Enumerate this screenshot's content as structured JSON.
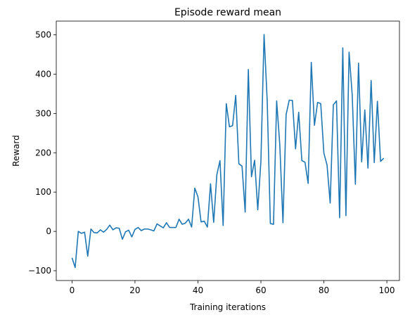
{
  "chart_data": {
    "type": "line",
    "title": "Episode reward mean",
    "xlabel": "Training iterations",
    "ylabel": "Reward",
    "xlim": [
      -5,
      104
    ],
    "ylim": [
      -125,
      535
    ],
    "xticks": [
      0,
      20,
      40,
      60,
      80,
      100
    ],
    "yticks": [
      -100,
      0,
      100,
      200,
      300,
      400,
      500
    ],
    "grid": false,
    "legend": "none",
    "line_color": "#1f77b4",
    "series": [
      {
        "x": [
          0,
          1,
          2,
          3,
          4,
          5,
          6,
          7,
          8,
          9,
          10,
          11,
          12,
          13,
          14,
          15,
          16,
          17,
          18,
          19,
          20,
          21,
          22,
          23,
          24,
          25,
          26,
          27,
          28,
          29,
          30,
          31,
          32,
          33,
          34,
          35,
          36,
          37,
          38,
          39,
          40,
          41,
          42,
          43,
          44,
          45,
          46,
          47,
          48,
          49,
          50,
          51,
          52,
          53,
          54,
          55,
          56,
          57,
          58,
          59,
          60,
          61,
          62,
          63,
          64,
          65,
          66,
          67,
          68,
          69,
          70,
          71,
          72,
          73,
          74,
          75,
          76,
          77,
          78,
          79,
          80,
          81,
          82,
          83,
          84,
          85,
          86,
          87,
          88,
          89,
          90,
          91,
          92,
          93,
          94,
          95,
          96,
          97,
          98,
          99
        ],
        "values": [
          -67,
          -92,
          0,
          -5,
          -2,
          -63,
          6,
          -3,
          -4,
          4,
          -2,
          5,
          16,
          4,
          9,
          8,
          -20,
          -1,
          3,
          -14,
          5,
          10,
          2,
          6,
          6,
          4,
          1,
          19,
          14,
          9,
          22,
          10,
          10,
          10,
          31,
          18,
          21,
          31,
          11,
          110,
          88,
          24,
          26,
          11,
          121,
          23,
          144,
          180,
          15,
          325,
          266,
          269,
          346,
          172,
          166,
          49,
          412,
          139,
          181,
          55,
          179,
          501,
          332,
          20,
          18,
          332,
          220,
          22,
          297,
          334,
          333,
          210,
          303,
          180,
          176,
          122,
          430,
          270,
          328,
          325,
          199,
          169,
          72,
          322,
          332,
          35,
          467,
          40,
          456,
          347,
          120,
          428,
          177,
          309,
          161,
          384,
          175,
          331,
          178,
          186
        ]
      }
    ]
  }
}
